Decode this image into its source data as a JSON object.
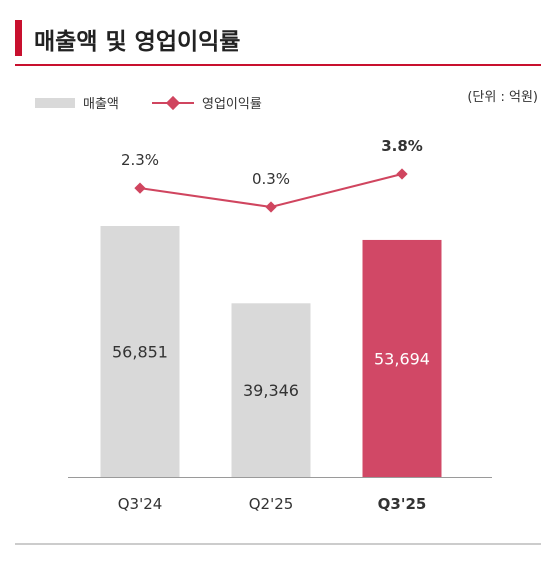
{
  "header": {
    "title": "매출액 및 영업이익률",
    "unit": "(단위 : 억원)"
  },
  "legend": {
    "bar_label": "매출액",
    "line_label": "영업이익률"
  },
  "colors": {
    "accent": "#c8102e",
    "bar_default": "#d9d9d9",
    "bar_highlight": "#d14866",
    "line": "#d0455f",
    "bar_label_default": "#333333",
    "bar_label_highlight": "#ffffff"
  },
  "chart_data": {
    "type": "bar+line",
    "categories": [
      "Q3'24",
      "Q2'25",
      "Q3'25"
    ],
    "highlight_index": 2,
    "series": [
      {
        "name": "매출액",
        "type": "bar",
        "values": [
          56851,
          39346,
          53694
        ],
        "labels": [
          "56,851",
          "39,346",
          "53,694"
        ]
      },
      {
        "name": "영업이익률",
        "type": "line",
        "values": [
          2.3,
          0.3,
          3.8
        ],
        "labels": [
          "2.3%",
          "0.3%",
          "3.8%"
        ]
      }
    ],
    "ylim": [
      0,
      60000
    ],
    "grid": false,
    "legend_position": "top-left"
  }
}
